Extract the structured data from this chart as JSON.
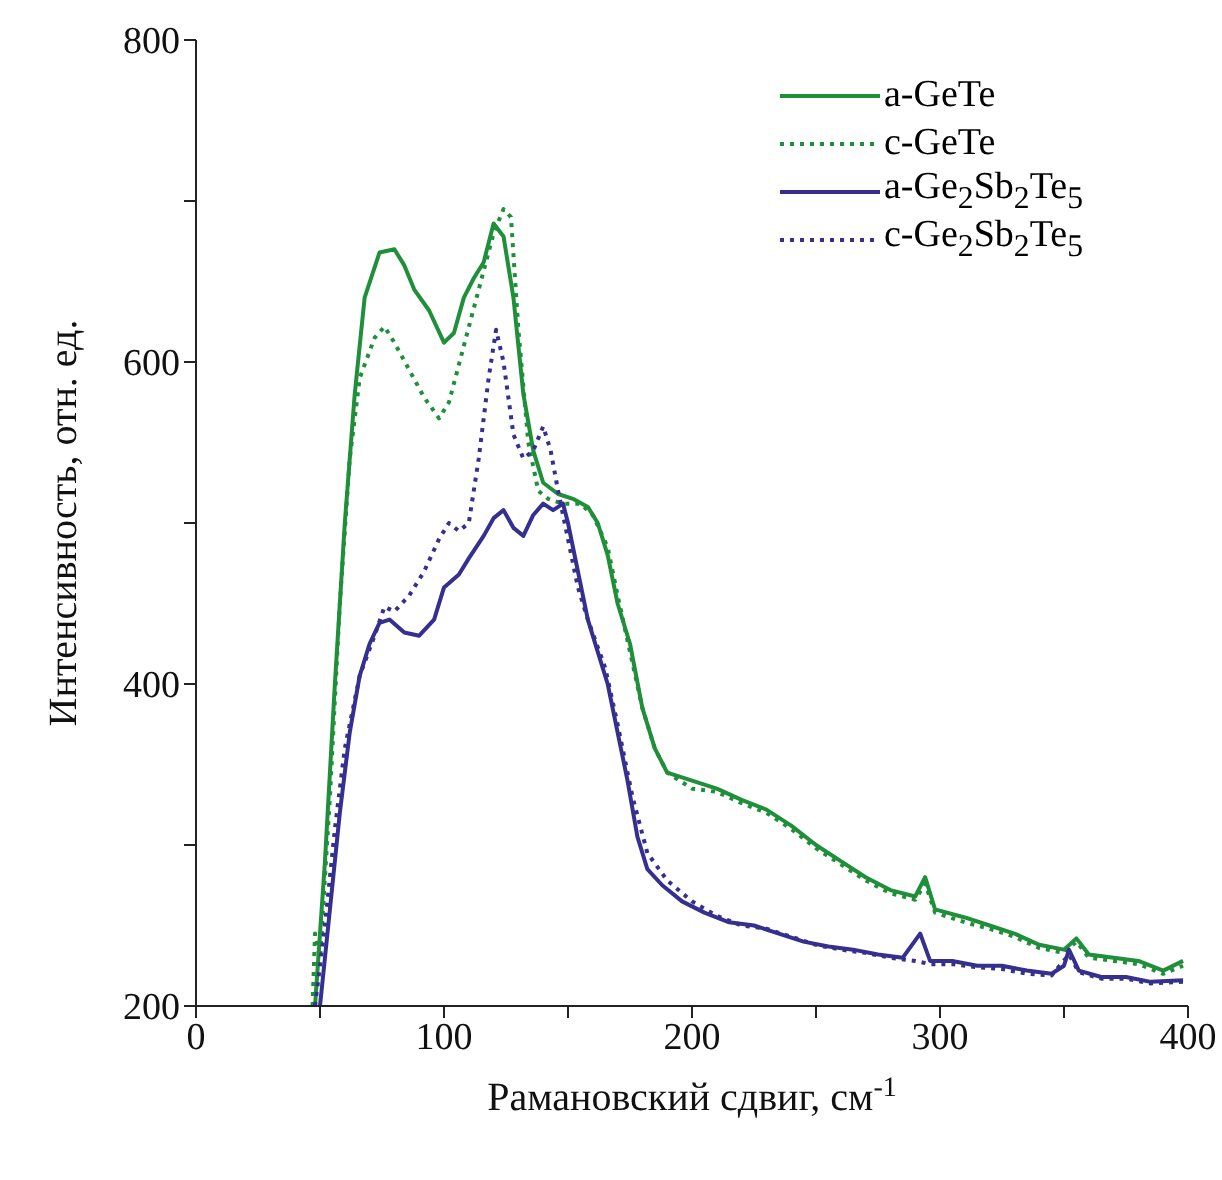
{
  "chart_data": {
    "type": "line",
    "xlabel": "Рамановский сдвиг, см$^{-1}$",
    "ylabel": "Интенсивность, отн. ед.",
    "xlim": [
      0,
      400
    ],
    "xticks": [
      0,
      {
        "value": 50,
        "label": null
      },
      100,
      {
        "value": 150,
        "label": null
      },
      200,
      {
        "value": 250,
        "label": null
      },
      300,
      {
        "value": 350,
        "label": null
      },
      400
    ],
    "ylim": [
      200,
      800
    ],
    "yticks": [
      200,
      {
        "value": 300,
        "label": null
      },
      400,
      {
        "value": 500,
        "label": null
      },
      600,
      {
        "value": 700,
        "label": null
      },
      800
    ],
    "grid": false,
    "legend": "top right",
    "marker": "none",
    "series": [
      {
        "name": "a-GeTe",
        "color": "#1f8f3a",
        "line_style": "solid",
        "x": [
          48,
          52,
          56,
          60,
          64,
          68,
          74,
          80,
          84,
          88,
          94,
          100,
          104,
          108,
          112,
          116,
          120,
          124,
          128,
          132,
          136,
          140,
          146,
          152,
          158,
          162,
          166,
          170,
          175,
          180,
          185,
          190,
          200,
          210,
          220,
          230,
          240,
          250,
          260,
          270,
          280,
          290,
          294,
          298,
          310,
          320,
          330,
          340,
          350,
          355,
          360,
          370,
          380,
          390,
          398
        ],
        "values": [
          200,
          290,
          400,
          500,
          580,
          640,
          668,
          670,
          660,
          645,
          632,
          612,
          618,
          640,
          652,
          662,
          686,
          678,
          640,
          580,
          545,
          525,
          518,
          515,
          510,
          500,
          480,
          450,
          425,
          385,
          360,
          345,
          340,
          335,
          328,
          322,
          312,
          300,
          290,
          280,
          272,
          268,
          280,
          260,
          255,
          250,
          245,
          238,
          235,
          242,
          232,
          230,
          228,
          222,
          228
        ]
      },
      {
        "name": "c-GeTe",
        "color": "#1f8f3a",
        "line_style": "dotted",
        "x": [
          47,
          48,
          50,
          54,
          58,
          62,
          66,
          72,
          76,
          80,
          86,
          92,
          98,
          102,
          108,
          114,
          120,
          124,
          127,
          130,
          134,
          138,
          142,
          148,
          155,
          160,
          166,
          170,
          175,
          180,
          185,
          190,
          200,
          210,
          220,
          230,
          240,
          250,
          260,
          270,
          280,
          290,
          294,
          298,
          310,
          320,
          330,
          340,
          350,
          355,
          360,
          370,
          380,
          390,
          398
        ],
        "values": [
          200,
          245,
          230,
          330,
          450,
          540,
          590,
          615,
          622,
          612,
          595,
          578,
          565,
          575,
          610,
          645,
          680,
          695,
          690,
          620,
          550,
          520,
          515,
          512,
          512,
          505,
          485,
          455,
          420,
          385,
          360,
          345,
          335,
          333,
          326,
          320,
          310,
          298,
          288,
          278,
          270,
          266,
          276,
          258,
          252,
          248,
          243,
          236,
          233,
          240,
          230,
          228,
          226,
          220,
          225
        ]
      },
      {
        "name": "a-Ge$_{2}$Sb$_{2}$Te$_{5}$",
        "color": "#35308f",
        "line_style": "solid",
        "x": [
          50,
          54,
          58,
          62,
          66,
          70,
          74,
          78,
          84,
          90,
          96,
          100,
          106,
          110,
          116,
          120,
          124,
          128,
          132,
          136,
          140,
          144,
          148,
          150,
          154,
          158,
          162,
          166,
          170,
          174,
          178,
          182,
          188,
          196,
          205,
          215,
          225,
          235,
          245,
          255,
          265,
          275,
          285,
          292,
          296,
          305,
          315,
          325,
          335,
          345,
          350,
          352,
          356,
          365,
          375,
          385,
          398
        ],
        "values": [
          200,
          260,
          320,
          370,
          405,
          425,
          438,
          440,
          432,
          430,
          440,
          460,
          468,
          478,
          492,
          503,
          508,
          497,
          492,
          505,
          512,
          508,
          512,
          500,
          470,
          440,
          420,
          400,
          370,
          340,
          305,
          285,
          275,
          265,
          258,
          252,
          250,
          245,
          240,
          237,
          235,
          232,
          230,
          245,
          228,
          228,
          225,
          225,
          222,
          220,
          225,
          235,
          222,
          218,
          218,
          215,
          216
        ]
      },
      {
        "name": "c-Ge$_{2}$Sb$_{2}$Te$_{5}$",
        "color": "#35308f",
        "line_style": "dotted",
        "x": [
          48,
          52,
          56,
          60,
          66,
          72,
          76,
          80,
          86,
          92,
          98,
          102,
          106,
          110,
          114,
          118,
          121,
          124,
          128,
          132,
          136,
          140,
          143,
          146,
          150,
          154,
          158,
          165,
          170,
          176,
          182,
          190,
          200,
          210,
          220,
          230,
          240,
          250,
          260,
          270,
          280,
          290,
          296,
          305,
          315,
          325,
          335,
          345,
          352,
          356,
          365,
          375,
          385,
          398
        ],
        "values": [
          200,
          250,
          310,
          360,
          405,
          430,
          448,
          445,
          455,
          470,
          490,
          500,
          495,
          500,
          540,
          590,
          620,
          600,
          555,
          540,
          545,
          560,
          545,
          520,
          490,
          460,
          440,
          410,
          375,
          330,
          295,
          278,
          265,
          256,
          250,
          248,
          243,
          238,
          235,
          233,
          230,
          228,
          226,
          226,
          224,
          223,
          220,
          219,
          232,
          221,
          217,
          217,
          214,
          215
        ]
      }
    ]
  }
}
